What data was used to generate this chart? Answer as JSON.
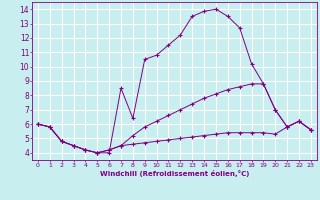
{
  "xlabel": "Windchill (Refroidissement éolien,°C)",
  "bg_color": "#c8eef0",
  "line_color": "#800080",
  "grid_color": "#ffffff",
  "xlim": [
    -0.5,
    23.5
  ],
  "ylim": [
    3.5,
    14.5
  ],
  "yticks": [
    4,
    5,
    6,
    7,
    8,
    9,
    10,
    11,
    12,
    13,
    14
  ],
  "xticks": [
    0,
    1,
    2,
    3,
    4,
    5,
    6,
    7,
    8,
    9,
    10,
    11,
    12,
    13,
    14,
    15,
    16,
    17,
    18,
    19,
    20,
    21,
    22,
    23
  ],
  "series": [
    {
      "x": [
        0,
        1,
        2,
        3,
        4,
        5,
        6,
        7,
        8,
        9,
        10,
        11,
        12,
        13,
        14,
        15,
        16,
        17,
        18,
        19,
        20,
        21,
        22,
        23
      ],
      "y": [
        6.0,
        5.8,
        4.8,
        4.5,
        4.2,
        4.0,
        4.0,
        8.5,
        6.4,
        10.5,
        10.8,
        11.5,
        12.2,
        13.5,
        13.85,
        14.0,
        13.5,
        12.7,
        10.2,
        8.8,
        7.0,
        5.8,
        6.2,
        5.6
      ]
    },
    {
      "x": [
        0,
        1,
        2,
        3,
        4,
        5,
        6,
        7,
        8,
        9,
        10,
        11,
        12,
        13,
        14,
        15,
        16,
        17,
        18,
        19,
        20,
        21,
        22,
        23
      ],
      "y": [
        6.0,
        5.8,
        4.8,
        4.5,
        4.2,
        4.0,
        4.2,
        4.5,
        5.2,
        5.8,
        6.2,
        6.6,
        7.0,
        7.4,
        7.8,
        8.1,
        8.4,
        8.6,
        8.8,
        8.8,
        7.0,
        5.8,
        6.2,
        5.6
      ]
    },
    {
      "x": [
        0,
        1,
        2,
        3,
        4,
        5,
        6,
        7,
        8,
        9,
        10,
        11,
        12,
        13,
        14,
        15,
        16,
        17,
        18,
        19,
        20,
        21,
        22,
        23
      ],
      "y": [
        6.0,
        5.8,
        4.8,
        4.5,
        4.2,
        4.0,
        4.2,
        4.5,
        4.6,
        4.7,
        4.8,
        4.9,
        5.0,
        5.1,
        5.2,
        5.3,
        5.4,
        5.4,
        5.4,
        5.4,
        5.3,
        5.8,
        6.2,
        5.6
      ]
    }
  ]
}
